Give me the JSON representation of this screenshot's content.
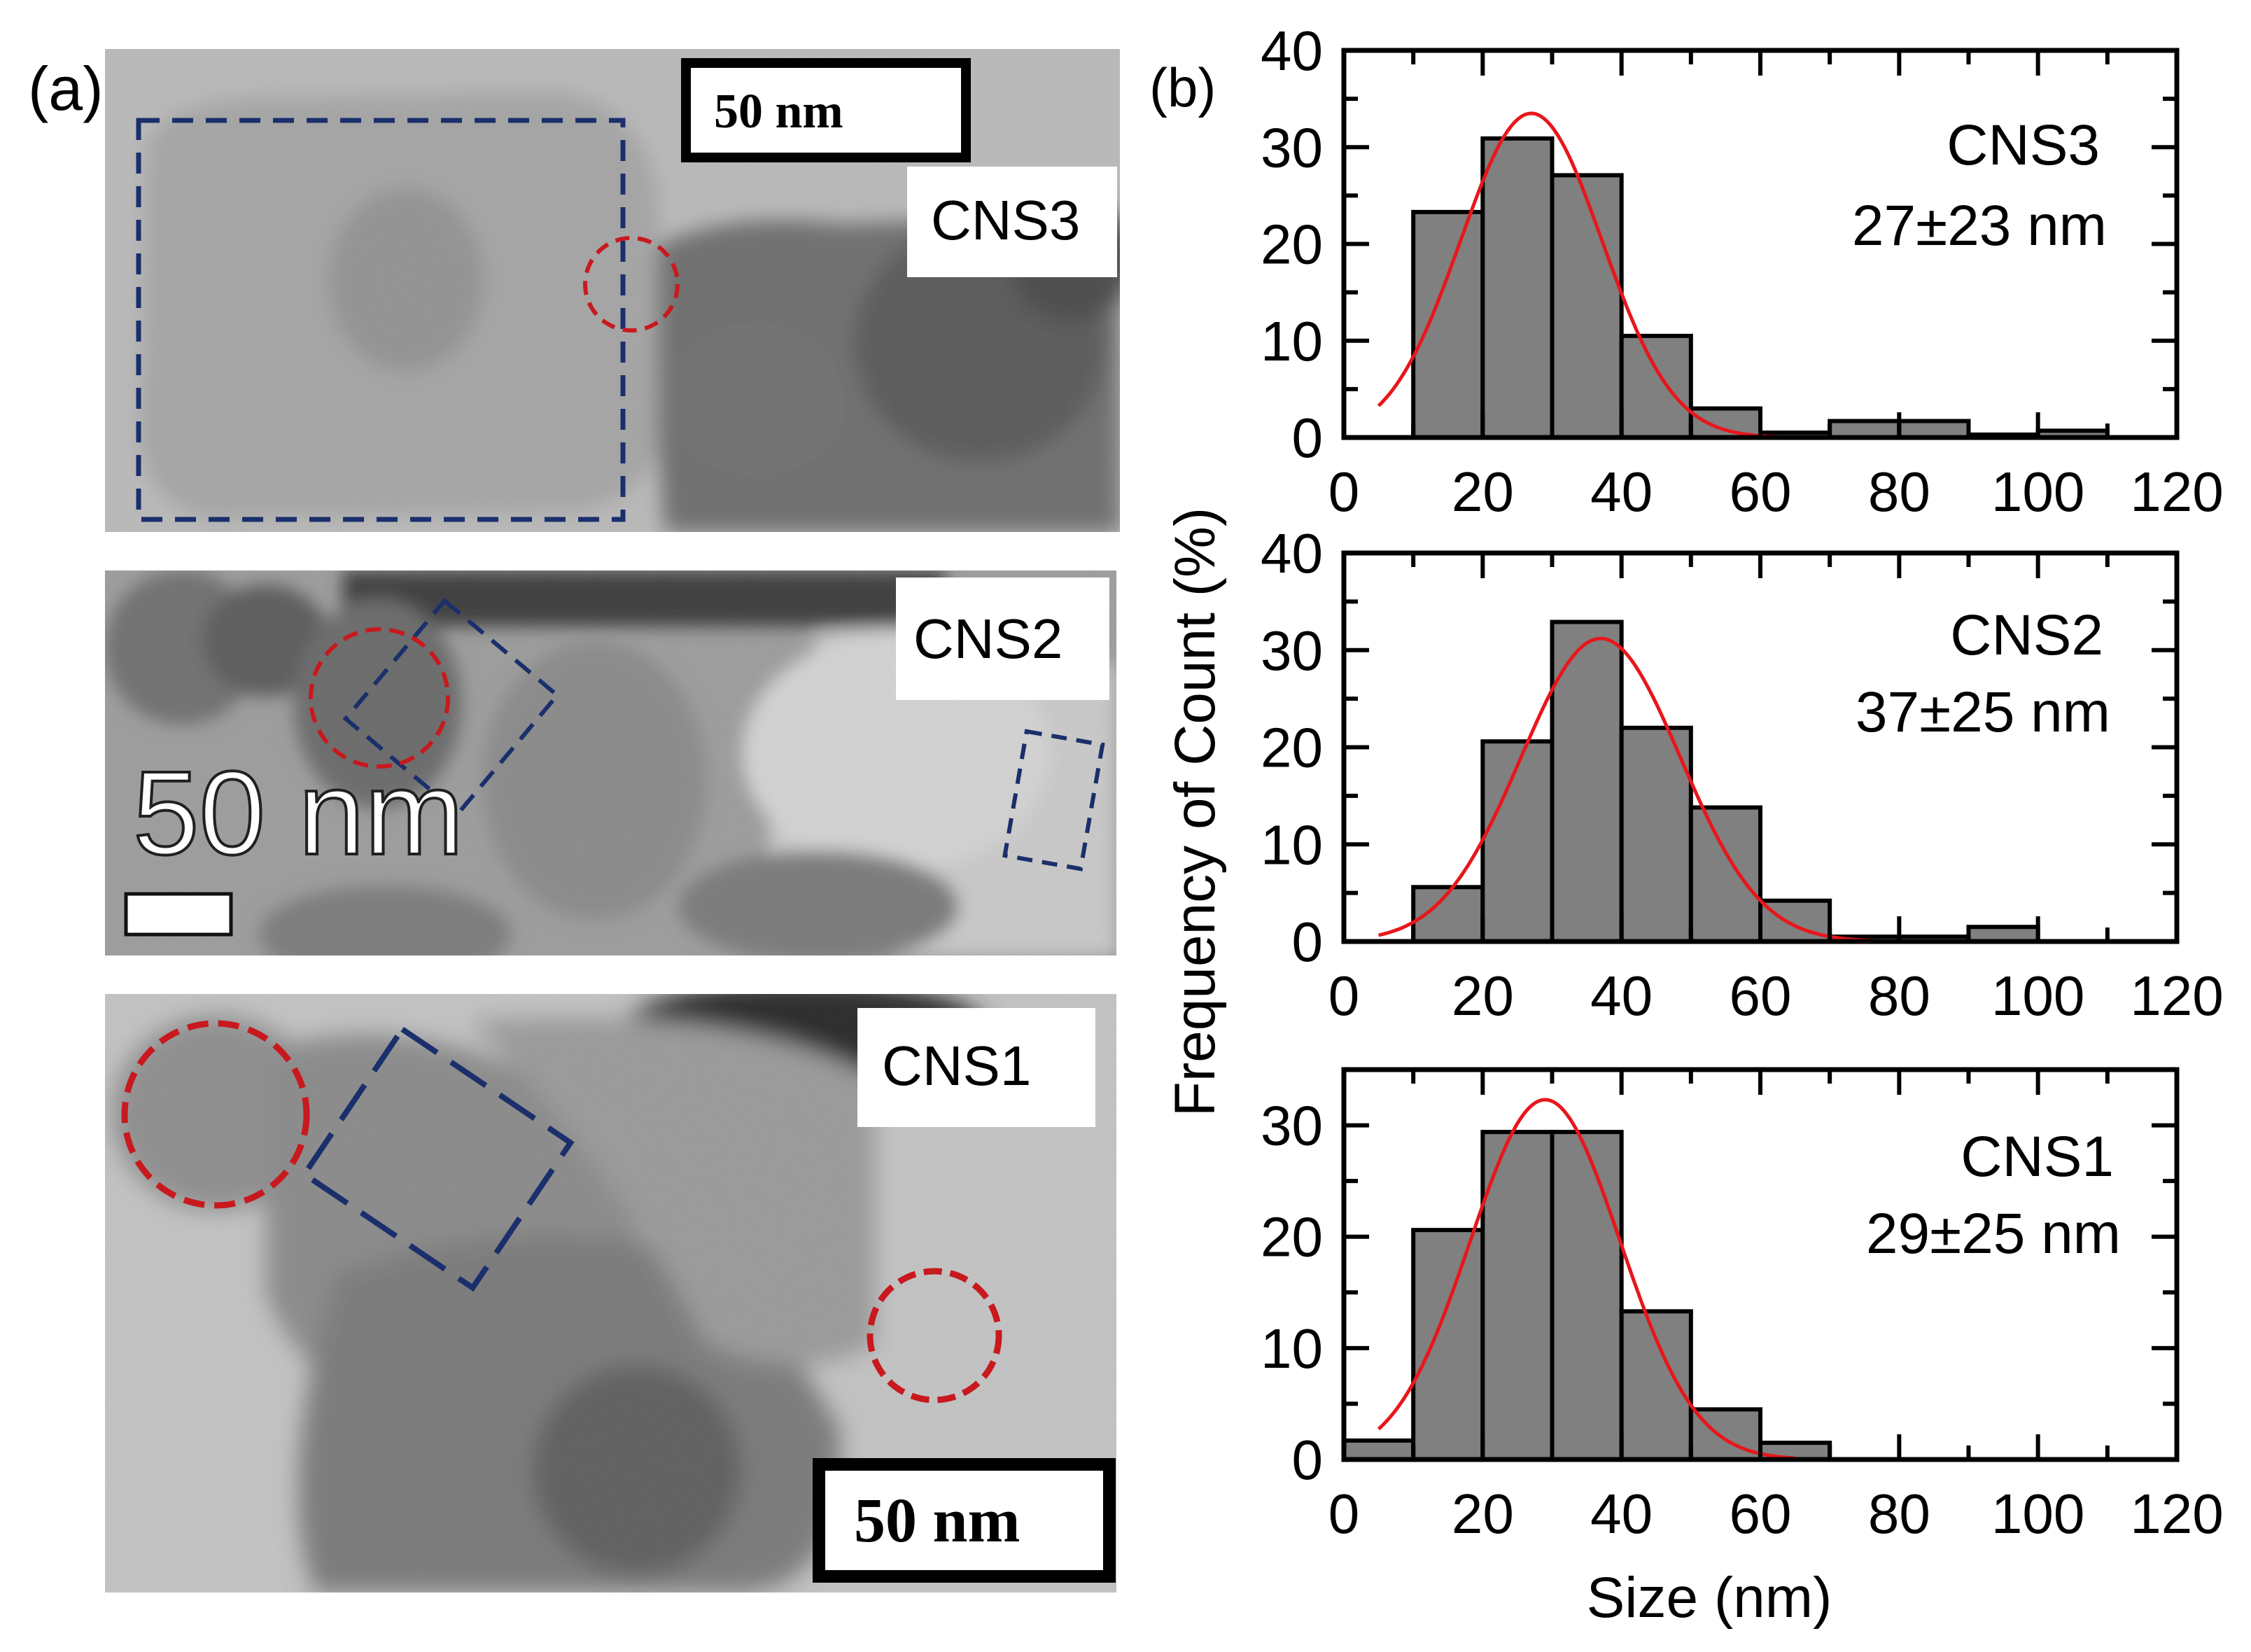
{
  "panel_a": {
    "label": "(a)",
    "images": [
      {
        "id": "cns3-tem",
        "sample": "CNS3",
        "scalebar_text": "50 nm",
        "scalebar_style": "boxed-top"
      },
      {
        "id": "cns2-tem",
        "sample": "CNS2",
        "scalebar_text": "50 nm",
        "scalebar_style": "large-overlay"
      },
      {
        "id": "cns1-tem",
        "sample": "CNS1",
        "scalebar_text": "50 nm",
        "scalebar_style": "boxed-bottom"
      }
    ],
    "annotation_colors": {
      "rectangle": "#1a2f6b",
      "circle": "#c8191e"
    }
  },
  "panel_b": {
    "label": "(b)",
    "ylabel": "Frequency of Count (%)",
    "xlabel": "Size (nm)"
  },
  "colors": {
    "bar_fill": "#808080",
    "bar_stroke": "#000000",
    "fit_line": "#e8161b"
  },
  "chart_data": [
    {
      "type": "bar",
      "sample": "CNS3",
      "title": "CNS3",
      "annotation": "27±23 nm",
      "xlim": [
        0,
        120
      ],
      "ylim": [
        0,
        40
      ],
      "xticks": [
        0,
        20,
        40,
        60,
        80,
        100,
        120
      ],
      "yticks": [
        0,
        10,
        20,
        30,
        40
      ],
      "bin_width": 10,
      "x": [
        15,
        25,
        35,
        45,
        55,
        65,
        75,
        85,
        95,
        105
      ],
      "values": [
        23.3,
        30.9,
        27.1,
        10.5,
        3.0,
        0.5,
        1.7,
        1.7,
        0.3,
        0.7
      ],
      "fit": {
        "type": "gaussian",
        "amplitude": 33.5,
        "center": 27,
        "sigma": 10.2,
        "x_range": [
          5,
          108
        ]
      }
    },
    {
      "type": "bar",
      "sample": "CNS2",
      "title": "CNS2",
      "annotation": "37±25 nm",
      "xlim": [
        0,
        120
      ],
      "ylim": [
        0,
        40
      ],
      "xticks": [
        0,
        20,
        40,
        60,
        80,
        100,
        120
      ],
      "yticks": [
        0,
        10,
        20,
        30,
        40
      ],
      "bin_width": 10,
      "x": [
        15,
        25,
        35,
        45,
        55,
        65,
        75,
        85,
        95
      ],
      "values": [
        5.6,
        20.6,
        32.9,
        22.0,
        13.8,
        4.2,
        0.5,
        0.5,
        1.5
      ],
      "fit": {
        "type": "gaussian",
        "amplitude": 31.2,
        "center": 37,
        "sigma": 11.5,
        "x_range": [
          5,
          100
        ]
      }
    },
    {
      "type": "bar",
      "sample": "CNS1",
      "title": "CNS1",
      "annotation": "29±25 nm",
      "xlim": [
        0,
        120
      ],
      "ylim": [
        0,
        35
      ],
      "xticks": [
        0,
        20,
        40,
        60,
        80,
        100,
        120
      ],
      "yticks": [
        0,
        10,
        20,
        30
      ],
      "bin_width": 10,
      "x": [
        5,
        15,
        25,
        35,
        45,
        55,
        65
      ],
      "values": [
        1.7,
        20.6,
        29.4,
        29.4,
        13.3,
        4.5,
        1.5
      ],
      "fit": {
        "type": "gaussian",
        "amplitude": 32.3,
        "center": 29,
        "sigma": 10.8,
        "x_range": [
          5,
          65
        ]
      }
    }
  ]
}
